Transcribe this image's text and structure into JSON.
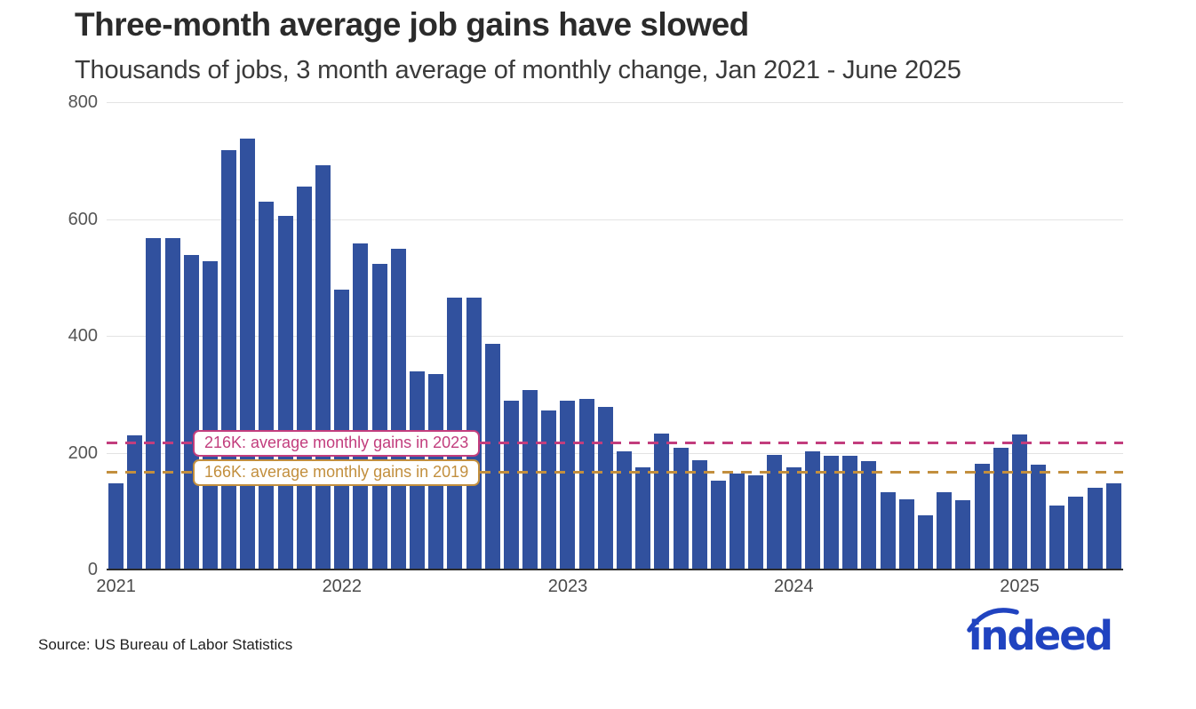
{
  "header": {
    "title": "Three-month average job gains have slowed",
    "subtitle": "Thousands of jobs, 3 month average of monthly change, Jan 2021 - June 2025"
  },
  "source": {
    "label": "Source: US Bureau of Labor Statistics"
  },
  "logo": {
    "text": "indeed",
    "color": "#2043c0"
  },
  "chart_data": {
    "type": "bar",
    "title": "Three-month average job gains have slowed",
    "subtitle": "Thousands of jobs, 3 month average of monthly change, Jan 2021 - June 2025",
    "xlabel": "",
    "ylabel": "Thousands of jobs (3-month average of monthly change)",
    "ylim": [
      0,
      800
    ],
    "yticks": [
      0,
      200,
      400,
      600,
      800
    ],
    "grid": true,
    "legend": "none",
    "bar_color": "#31519E",
    "axis_color": "#2b2b2b",
    "gridline_color": "#e3e3e3",
    "categories": [
      "Jan 2021",
      "Feb 2021",
      "Mar 2021",
      "Apr 2021",
      "May 2021",
      "Jun 2021",
      "Jul 2021",
      "Aug 2021",
      "Sep 2021",
      "Oct 2021",
      "Nov 2021",
      "Dec 2021",
      "Jan 2022",
      "Feb 2022",
      "Mar 2022",
      "Apr 2022",
      "May 2022",
      "Jun 2022",
      "Jul 2022",
      "Aug 2022",
      "Sep 2022",
      "Oct 2022",
      "Nov 2022",
      "Dec 2022",
      "Jan 2023",
      "Feb 2023",
      "Mar 2023",
      "Apr 2023",
      "May 2023",
      "Jun 2023",
      "Jul 2023",
      "Aug 2023",
      "Sep 2023",
      "Oct 2023",
      "Nov 2023",
      "Dec 2023",
      "Jan 2024",
      "Feb 2024",
      "Mar 2024",
      "Apr 2024",
      "May 2024",
      "Jun 2024",
      "Jul 2024",
      "Aug 2024",
      "Sep 2024",
      "Oct 2024",
      "Nov 2024",
      "Dec 2024",
      "Jan 2025",
      "Feb 2025",
      "Mar 2025",
      "Apr 2025",
      "May 2025",
      "Jun 2025"
    ],
    "values": [
      148,
      230,
      567,
      567,
      538,
      528,
      718,
      738,
      630,
      605,
      656,
      692,
      479,
      558,
      523,
      549,
      339,
      335,
      465,
      465,
      386,
      289,
      307,
      272,
      289,
      292,
      278,
      202,
      175,
      233,
      208,
      187,
      152,
      164,
      161,
      196,
      175,
      202,
      195,
      195,
      185,
      132,
      120,
      93,
      132,
      118,
      181,
      208,
      231,
      179,
      109,
      125,
      140,
      147
    ],
    "year_ticks": [
      {
        "label": "2021",
        "month_index": 0
      },
      {
        "label": "2022",
        "month_index": 12
      },
      {
        "label": "2023",
        "month_index": 24
      },
      {
        "label": "2024",
        "month_index": 36
      },
      {
        "label": "2025",
        "month_index": 48
      }
    ],
    "reference_lines": [
      {
        "value": 216,
        "label": "216K: average monthly gains in 2023",
        "color": "#C23D7D",
        "year": "2023"
      },
      {
        "value": 166,
        "label": "166K: average monthly gains in 2019",
        "color": "#C28F3E",
        "year": "2019"
      }
    ]
  }
}
